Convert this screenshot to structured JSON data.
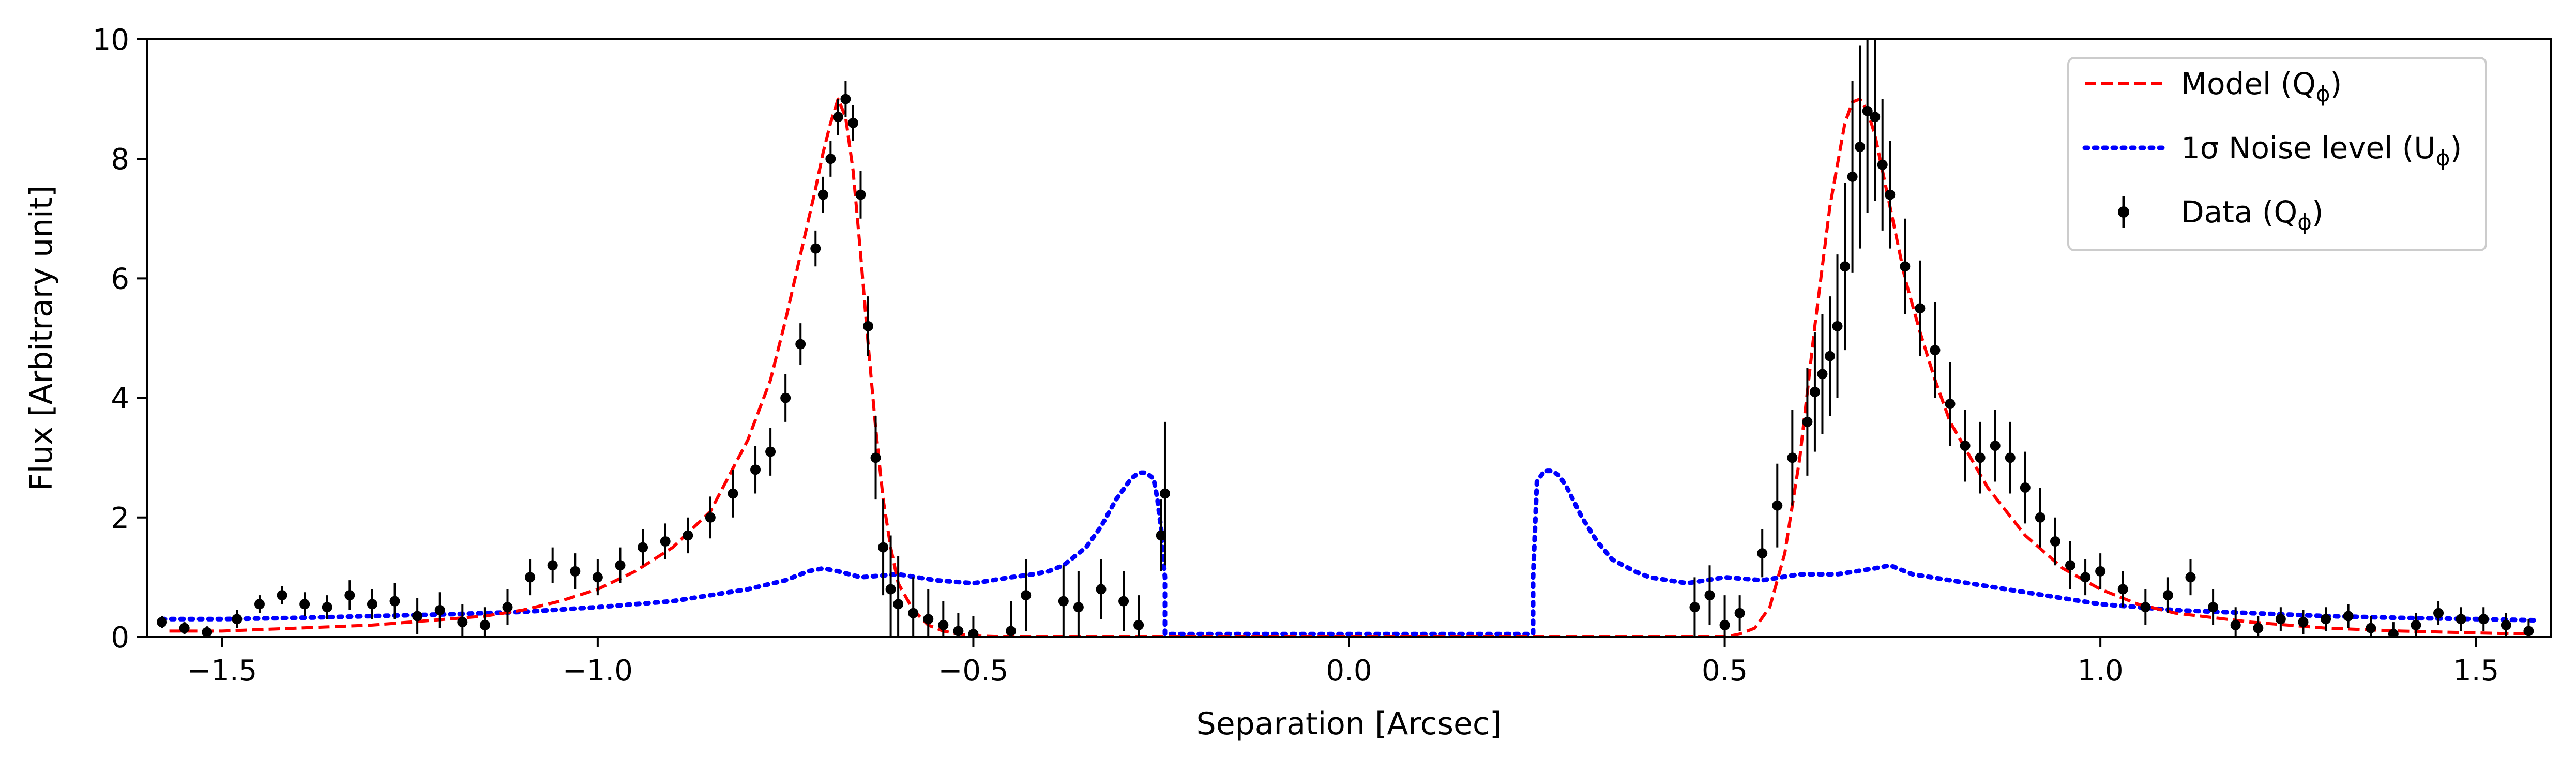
{
  "chart_data": {
    "type": "line",
    "xlabel": "Separation [Arcsec]",
    "ylabel": "Flux [Arbitrary unit]",
    "xlim": [
      -1.6,
      1.6
    ],
    "ylim": [
      0,
      10
    ],
    "xticks": [
      -1.5,
      -1.0,
      -0.5,
      0.0,
      0.5,
      1.0,
      1.5
    ],
    "xtick_labels": [
      "−1.5",
      "−1.0",
      "−0.5",
      "0.0",
      "0.5",
      "1.0",
      "1.5"
    ],
    "yticks": [
      0,
      2,
      4,
      6,
      8,
      10
    ],
    "ytick_labels": [
      "0",
      "2",
      "4",
      "6",
      "8",
      "10"
    ],
    "legend_position": "top-right",
    "legend": [
      {
        "label": "Model (Q",
        "sub": "ϕ",
        "close": ")",
        "style": "dashed",
        "color": "#ff0000"
      },
      {
        "label": "1σ Noise level (U",
        "sub": "ϕ",
        "close": ")",
        "style": "dotted",
        "color": "#0000ff"
      },
      {
        "label": "Data (Q",
        "sub": "ϕ",
        "close": ")",
        "style": "errorbar",
        "color": "#000000"
      }
    ],
    "series": [
      {
        "name": "Model (Qϕ)",
        "style": "dashed",
        "color": "#ff0000",
        "x": [
          -1.57,
          -1.5,
          -1.4,
          -1.3,
          -1.2,
          -1.15,
          -1.1,
          -1.05,
          -1.0,
          -0.95,
          -0.9,
          -0.85,
          -0.8,
          -0.77,
          -0.75,
          -0.73,
          -0.71,
          -0.7,
          -0.69,
          -0.68,
          -0.67,
          -0.66,
          -0.65,
          -0.64,
          -0.63,
          -0.62,
          -0.61,
          -0.6,
          -0.58,
          -0.56,
          -0.54,
          -0.52,
          -0.5,
          -0.45,
          0.5,
          0.52,
          0.54,
          0.56,
          0.58,
          0.6,
          0.62,
          0.64,
          0.66,
          0.67,
          0.68,
          0.69,
          0.7,
          0.71,
          0.72,
          0.74,
          0.76,
          0.78,
          0.8,
          0.85,
          0.9,
          0.95,
          1.0,
          1.05,
          1.1,
          1.2,
          1.3,
          1.4,
          1.5,
          1.57
        ],
        "y": [
          0.1,
          0.1,
          0.15,
          0.2,
          0.3,
          0.35,
          0.45,
          0.6,
          0.8,
          1.1,
          1.5,
          2.1,
          3.3,
          4.3,
          5.3,
          6.4,
          7.5,
          8.1,
          8.6,
          9.0,
          8.7,
          7.8,
          6.4,
          4.9,
          3.5,
          2.3,
          1.5,
          0.9,
          0.45,
          0.2,
          0.1,
          0.05,
          0.02,
          0.0,
          0.0,
          0.05,
          0.15,
          0.5,
          1.4,
          3.0,
          5.2,
          7.2,
          8.6,
          8.95,
          9.0,
          8.8,
          8.4,
          7.8,
          7.2,
          6.0,
          5.1,
          4.3,
          3.6,
          2.5,
          1.7,
          1.15,
          0.8,
          0.55,
          0.4,
          0.25,
          0.15,
          0.1,
          0.07,
          0.05
        ]
      },
      {
        "name": "1σ Noise level (Uϕ)",
        "style": "dotted",
        "color": "#0000ff",
        "x": [
          -1.58,
          -1.5,
          -1.4,
          -1.3,
          -1.2,
          -1.1,
          -1.0,
          -0.9,
          -0.8,
          -0.75,
          -0.72,
          -0.7,
          -0.68,
          -0.65,
          -0.6,
          -0.55,
          -0.5,
          -0.45,
          -0.42,
          -0.4,
          -0.38,
          -0.35,
          -0.33,
          -0.31,
          -0.29,
          -0.28,
          -0.27,
          -0.26,
          -0.255,
          -0.25,
          -0.245,
          -0.245,
          0.0,
          0.245,
          0.245,
          0.25,
          0.26,
          0.27,
          0.28,
          0.29,
          0.31,
          0.33,
          0.35,
          0.38,
          0.4,
          0.45,
          0.5,
          0.55,
          0.6,
          0.65,
          0.7,
          0.72,
          0.75,
          0.8,
          0.9,
          1.0,
          1.1,
          1.2,
          1.3,
          1.4,
          1.5,
          1.58
        ],
        "y": [
          0.3,
          0.3,
          0.32,
          0.35,
          0.38,
          0.42,
          0.5,
          0.6,
          0.8,
          0.95,
          1.1,
          1.15,
          1.1,
          1.0,
          1.05,
          0.95,
          0.9,
          1.0,
          1.05,
          1.1,
          1.2,
          1.5,
          1.85,
          2.3,
          2.65,
          2.75,
          2.75,
          2.65,
          2.3,
          1.8,
          1.0,
          0.05,
          0.05,
          0.05,
          1.0,
          2.6,
          2.78,
          2.78,
          2.7,
          2.5,
          2.0,
          1.6,
          1.3,
          1.1,
          1.0,
          0.9,
          1.0,
          0.95,
          1.05,
          1.05,
          1.15,
          1.2,
          1.05,
          0.95,
          0.75,
          0.55,
          0.45,
          0.4,
          0.35,
          0.32,
          0.3,
          0.28
        ]
      },
      {
        "name": "Data (Qϕ)",
        "style": "errorbar",
        "color": "#000000",
        "x": [
          -1.58,
          -1.55,
          -1.52,
          -1.48,
          -1.45,
          -1.42,
          -1.39,
          -1.36,
          -1.33,
          -1.3,
          -1.27,
          -1.24,
          -1.21,
          -1.18,
          -1.15,
          -1.12,
          -1.09,
          -1.06,
          -1.03,
          -1.0,
          -0.97,
          -0.94,
          -0.91,
          -0.88,
          -0.85,
          -0.82,
          -0.79,
          -0.77,
          -0.75,
          -0.73,
          -0.71,
          -0.7,
          -0.69,
          -0.68,
          -0.67,
          -0.66,
          -0.65,
          -0.64,
          -0.63,
          -0.62,
          -0.61,
          -0.6,
          -0.58,
          -0.56,
          -0.54,
          -0.52,
          -0.5,
          -0.45,
          -0.43,
          -0.38,
          -0.36,
          -0.33,
          -0.3,
          -0.28,
          -0.25,
          -0.245,
          0.46,
          0.48,
          0.5,
          0.52,
          0.55,
          0.57,
          0.59,
          0.61,
          0.62,
          0.63,
          0.64,
          0.65,
          0.66,
          0.67,
          0.68,
          0.69,
          0.7,
          0.71,
          0.72,
          0.74,
          0.76,
          0.78,
          0.8,
          0.82,
          0.84,
          0.86,
          0.88,
          0.9,
          0.92,
          0.94,
          0.96,
          0.98,
          1.0,
          1.03,
          1.06,
          1.09,
          1.12,
          1.15,
          1.18,
          1.21,
          1.24,
          1.27,
          1.3,
          1.33,
          1.36,
          1.39,
          1.42,
          1.45,
          1.48,
          1.51,
          1.54,
          1.57
        ],
        "y": [
          0.25,
          0.15,
          0.08,
          0.3,
          0.55,
          0.7,
          0.55,
          0.5,
          0.7,
          0.55,
          0.6,
          0.35,
          0.45,
          0.25,
          0.2,
          0.5,
          1.0,
          1.2,
          1.1,
          1.0,
          1.2,
          1.5,
          1.6,
          1.7,
          2.0,
          2.4,
          2.8,
          3.1,
          4.0,
          4.9,
          6.5,
          7.4,
          8.0,
          8.7,
          9.0,
          8.6,
          7.4,
          5.2,
          3.0,
          1.5,
          0.8,
          0.55,
          0.4,
          0.3,
          0.2,
          0.1,
          0.05,
          0.1,
          0.7,
          0.6,
          0.5,
          0.8,
          0.6,
          0.2,
          1.7,
          2.4,
          0.5,
          0.7,
          0.2,
          0.4,
          1.4,
          2.2,
          3.0,
          3.6,
          4.1,
          4.4,
          4.7,
          5.2,
          6.2,
          7.7,
          8.2,
          8.8,
          8.7,
          7.9,
          7.4,
          6.2,
          5.5,
          4.8,
          3.9,
          3.2,
          3.0,
          3.2,
          3.0,
          2.5,
          2.0,
          1.6,
          1.2,
          1.0,
          1.1,
          0.8,
          0.5,
          0.7,
          1.0,
          0.5,
          0.2,
          0.15,
          0.3,
          0.25,
          0.3,
          0.35,
          0.15,
          0.05,
          0.2,
          0.4,
          0.3,
          0.3,
          0.2,
          0.1
        ],
        "err": [
          0.1,
          0.1,
          0.1,
          0.15,
          0.15,
          0.15,
          0.2,
          0.2,
          0.25,
          0.25,
          0.3,
          0.3,
          0.3,
          0.3,
          0.3,
          0.3,
          0.3,
          0.3,
          0.3,
          0.3,
          0.3,
          0.3,
          0.3,
          0.3,
          0.35,
          0.4,
          0.4,
          0.4,
          0.4,
          0.35,
          0.3,
          0.3,
          0.3,
          0.3,
          0.3,
          0.3,
          0.4,
          0.5,
          0.7,
          0.8,
          0.9,
          0.8,
          0.6,
          0.5,
          0.4,
          0.3,
          0.3,
          0.5,
          0.6,
          0.6,
          0.6,
          0.5,
          0.5,
          0.5,
          0.6,
          1.2,
          0.5,
          0.5,
          0.5,
          0.3,
          0.4,
          0.7,
          0.8,
          0.9,
          1.0,
          1.0,
          1.0,
          1.2,
          1.4,
          1.6,
          1.7,
          1.7,
          1.4,
          1.1,
          0.9,
          0.8,
          0.8,
          0.8,
          0.7,
          0.6,
          0.6,
          0.6,
          0.6,
          0.6,
          0.5,
          0.4,
          0.4,
          0.3,
          0.3,
          0.3,
          0.3,
          0.3,
          0.3,
          0.3,
          0.3,
          0.2,
          0.2,
          0.2,
          0.2,
          0.2,
          0.2,
          0.2,
          0.2,
          0.2,
          0.2,
          0.2,
          0.2,
          0.2
        ]
      }
    ]
  }
}
